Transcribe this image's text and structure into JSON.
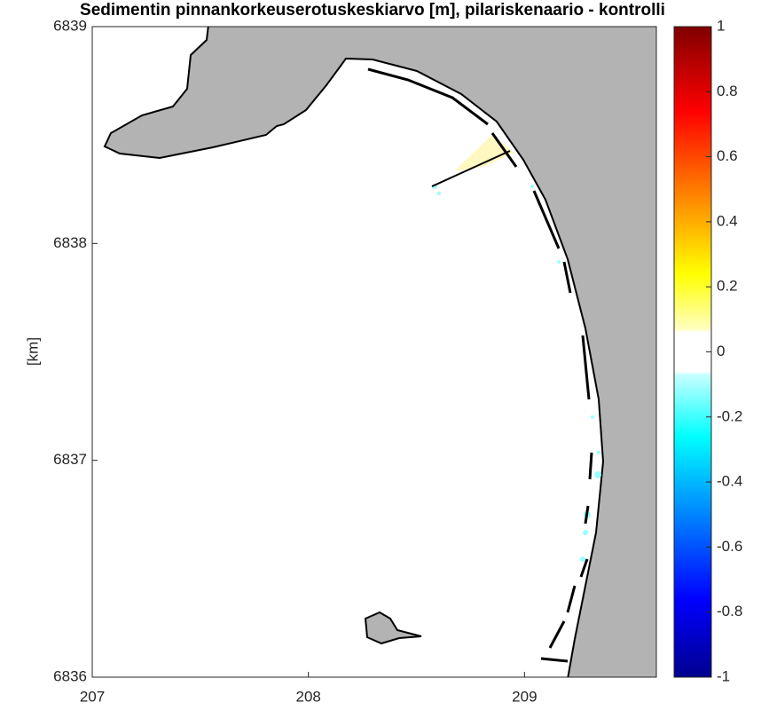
{
  "chart_data": {
    "type": "map",
    "title": "Sedimentin pinnankorkeuserotuskeskiarvo [m], pilariskenaario - kontrolli",
    "ylabel": "[km]",
    "xlim": [
      207,
      209.61
    ],
    "xticks": [
      207,
      208,
      209
    ],
    "ylim": [
      6836,
      6839
    ],
    "yticks": [
      6836,
      6837,
      6838,
      6839
    ],
    "colorbar": {
      "clim": [
        -1,
        1
      ],
      "ticks": [
        -1,
        -0.8,
        -0.6,
        -0.4,
        -0.2,
        0,
        0.2,
        0.4,
        0.6,
        0.8,
        1
      ]
    }
  }
}
